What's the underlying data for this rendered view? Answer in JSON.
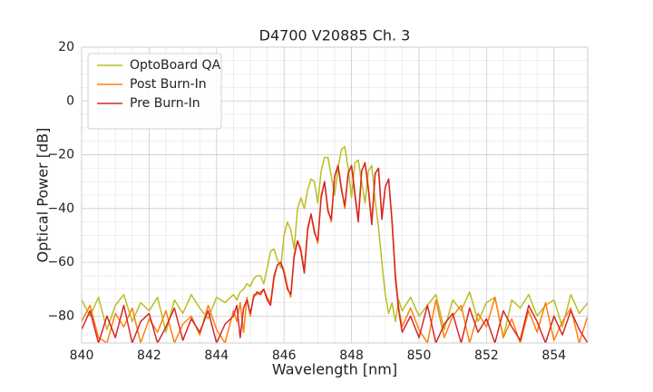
{
  "chart_data": {
    "type": "line",
    "title": "D4700 V20885 Ch. 3",
    "xlabel": "Wavelength [nm]",
    "ylabel": "Optical Power [dB]",
    "xlim": [
      840,
      855
    ],
    "ylim": [
      -90,
      20
    ],
    "xticks": [
      840,
      842,
      844,
      846,
      848,
      850,
      852,
      854
    ],
    "yticks": [
      {
        "value": -80,
        "label": "−80"
      },
      {
        "value": -60,
        "label": "−60"
      },
      {
        "value": -40,
        "label": "−40"
      },
      {
        "value": -20,
        "label": "−20"
      },
      0,
      20
    ],
    "grid": true,
    "legend": "upper left",
    "x": [
      840,
      840.25,
      840.5,
      840.75,
      841,
      841.25,
      841.5,
      841.75,
      842,
      842.25,
      842.5,
      842.75,
      843,
      843.25,
      843.5,
      843.75,
      844,
      844.25,
      844.5,
      844.6,
      844.7,
      844.8,
      844.9,
      845,
      845.1,
      845.2,
      845.3,
      845.4,
      845.5,
      845.6,
      845.7,
      845.8,
      845.9,
      846,
      846.1,
      846.2,
      846.3,
      846.4,
      846.5,
      846.6,
      846.7,
      846.8,
      846.9,
      847,
      847.1,
      847.2,
      847.3,
      847.4,
      847.5,
      847.6,
      847.7,
      847.8,
      847.9,
      848,
      848.1,
      848.2,
      848.3,
      848.4,
      848.5,
      848.6,
      848.7,
      848.8,
      848.9,
      849,
      849.1,
      849.2,
      849.3,
      849.4,
      849.5,
      849.75,
      850,
      850.25,
      850.5,
      850.75,
      851,
      851.25,
      851.5,
      851.75,
      852,
      852.25,
      852.5,
      852.75,
      853,
      853.25,
      853.5,
      853.75,
      854,
      854.25,
      854.5,
      854.75,
      855
    ],
    "series": [
      {
        "name": "OptoBoard QA",
        "color": "#bcbd22",
        "values": [
          -74,
          -80,
          -73,
          -85,
          -76,
          -72,
          -82,
          -75,
          -78,
          -73,
          -86,
          -74,
          -79,
          -72,
          -77,
          -81,
          -73,
          -75,
          -72,
          -74,
          -71,
          -70,
          -68,
          -69,
          -66,
          -65,
          -65,
          -68,
          -62,
          -56,
          -55,
          -59,
          -62,
          -50,
          -45,
          -48,
          -55,
          -40,
          -36,
          -40,
          -33,
          -29,
          -30,
          -38,
          -26,
          -21,
          -21,
          -28,
          -35,
          -25,
          -18,
          -17,
          -25,
          -36,
          -23,
          -22,
          -30,
          -38,
          -26,
          -24,
          -37,
          -47,
          -60,
          -72,
          -79,
          -75,
          -82,
          -74,
          -78,
          -73,
          -80,
          -76,
          -72,
          -85,
          -74,
          -78,
          -71,
          -82,
          -75,
          -73,
          -88,
          -74,
          -77,
          -72,
          -80,
          -76,
          -74,
          -84,
          -72,
          -79,
          -75
        ]
      },
      {
        "name": "Post Burn-In",
        "color": "#ff7f0e",
        "values": [
          -82,
          -76,
          -88,
          -90,
          -79,
          -84,
          -77,
          -90,
          -81,
          -86,
          -78,
          -90,
          -83,
          -80,
          -87,
          -76,
          -85,
          -90,
          -78,
          -82,
          -75,
          -86,
          -73,
          -80,
          -72,
          -72,
          -71,
          -70,
          -73,
          -75,
          -65,
          -61,
          -60,
          -63,
          -69,
          -73,
          -57,
          -52,
          -55,
          -63,
          -47,
          -42,
          -48,
          -53,
          -35,
          -30,
          -40,
          -45,
          -28,
          -24,
          -32,
          -40,
          -27,
          -24,
          -34,
          -44,
          -26,
          -23,
          -32,
          -45,
          -27,
          -25,
          -43,
          -32,
          -29,
          -44,
          -64,
          -77,
          -84,
          -77,
          -85,
          -90,
          -74,
          -88,
          -80,
          -76,
          -90,
          -79,
          -84,
          -73,
          -88,
          -81,
          -90,
          -78,
          -86,
          -75,
          -89,
          -82,
          -77,
          -90,
          -80
        ]
      },
      {
        "name": "Pre Burn-In",
        "color": "#d62728",
        "values": [
          -85,
          -78,
          -90,
          -80,
          -88,
          -76,
          -90,
          -82,
          -79,
          -90,
          -84,
          -77,
          -89,
          -81,
          -86,
          -78,
          -90,
          -83,
          -80,
          -76,
          -88,
          -77,
          -74,
          -79,
          -73,
          -71,
          -72,
          -70,
          -74,
          -76,
          -66,
          -61,
          -60,
          -64,
          -70,
          -72,
          -58,
          -52,
          -56,
          -64,
          -48,
          -42,
          -49,
          -52,
          -36,
          -30,
          -41,
          -44,
          -28,
          -24,
          -33,
          -39,
          -27,
          -24,
          -35,
          -45,
          -26,
          -23,
          -33,
          -46,
          -27,
          -25,
          -44,
          -32,
          -29,
          -45,
          -66,
          -78,
          -86,
          -80,
          -88,
          -76,
          -90,
          -83,
          -79,
          -90,
          -77,
          -86,
          -81,
          -90,
          -78,
          -84,
          -89,
          -76,
          -82,
          -90,
          -80,
          -87,
          -78,
          -85,
          -90
        ]
      }
    ]
  }
}
